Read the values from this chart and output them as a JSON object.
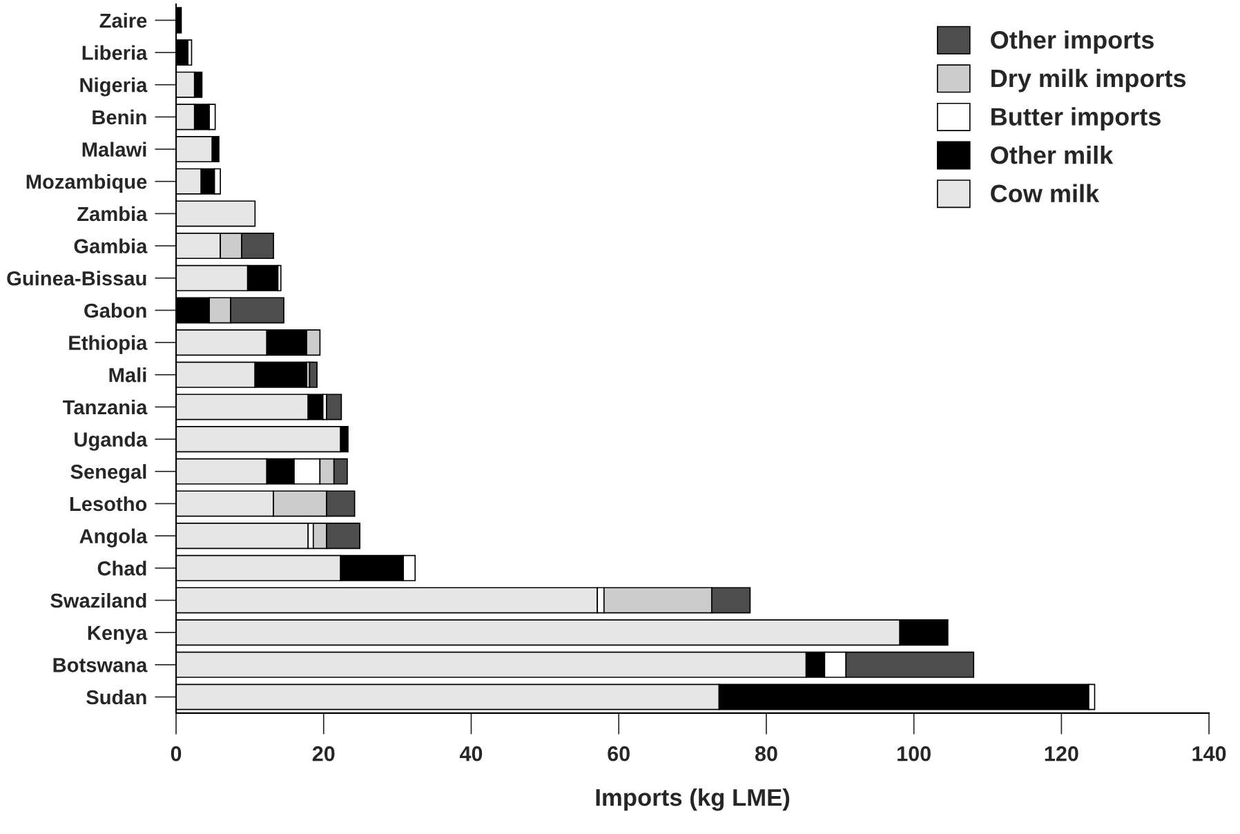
{
  "chart_data": {
    "type": "bar",
    "orientation": "horizontal",
    "stacked": true,
    "xlabel": "Imports (kg LME)",
    "categories": [
      "Zaire",
      "Liberia",
      "Nigeria",
      "Benin",
      "Malawi",
      "Mozambique",
      "Zambia",
      "Gambia",
      "Guinea-Bissau",
      "Gabon",
      "Ethiopia",
      "Mali",
      "Tanzania",
      "Uganda",
      "Senegal",
      "Lesotho",
      "Angola",
      "Chad",
      "Swaziland",
      "Kenya",
      "Botswana",
      "Sudan"
    ],
    "series": [
      {
        "name": "Cow milk",
        "color": "#e6e6e6",
        "values": [
          null,
          null,
          2.5,
          2.5,
          4.9,
          3.4,
          10.7,
          6.0,
          9.7,
          null,
          12.3,
          10.7,
          17.9,
          22.3,
          12.3,
          13.2,
          17.9,
          22.3,
          57.1,
          98.1,
          85.4,
          73.6
        ]
      },
      {
        "name": "Other milk",
        "color": "#000000",
        "values": [
          0.7,
          1.6,
          1.0,
          2.0,
          0.9,
          1.8,
          null,
          null,
          4.1,
          4.5,
          5.4,
          7.0,
          2.0,
          1.0,
          3.7,
          null,
          null,
          8.5,
          null,
          6.5,
          2.5,
          50.1
        ]
      },
      {
        "name": "Butter imports",
        "color": "#ffffff",
        "values": [
          null,
          0.5,
          null,
          0.8,
          null,
          0.8,
          null,
          null,
          0.4,
          null,
          null,
          null,
          0.5,
          null,
          3.5,
          null,
          0.7,
          1.6,
          0.9,
          null,
          2.9,
          0.8
        ]
      },
      {
        "name": "Dry milk imports",
        "color": "#cccccc",
        "values": [
          null,
          null,
          null,
          null,
          null,
          null,
          null,
          2.9,
          null,
          2.9,
          1.8,
          0.4,
          null,
          null,
          1.9,
          7.2,
          1.8,
          null,
          14.6,
          null,
          null,
          null
        ]
      },
      {
        "name": "Other imports",
        "color": "#4d4d4d",
        "values": [
          null,
          null,
          null,
          null,
          null,
          null,
          null,
          4.3,
          null,
          7.2,
          null,
          1.0,
          2.0,
          null,
          1.8,
          3.8,
          4.5,
          null,
          5.2,
          null,
          17.3,
          null
        ]
      }
    ],
    "xlim": [
      0,
      140
    ],
    "xticks": [
      0,
      20,
      40,
      60,
      80,
      100,
      120,
      140
    ],
    "legend": "top right",
    "grid": false
  }
}
